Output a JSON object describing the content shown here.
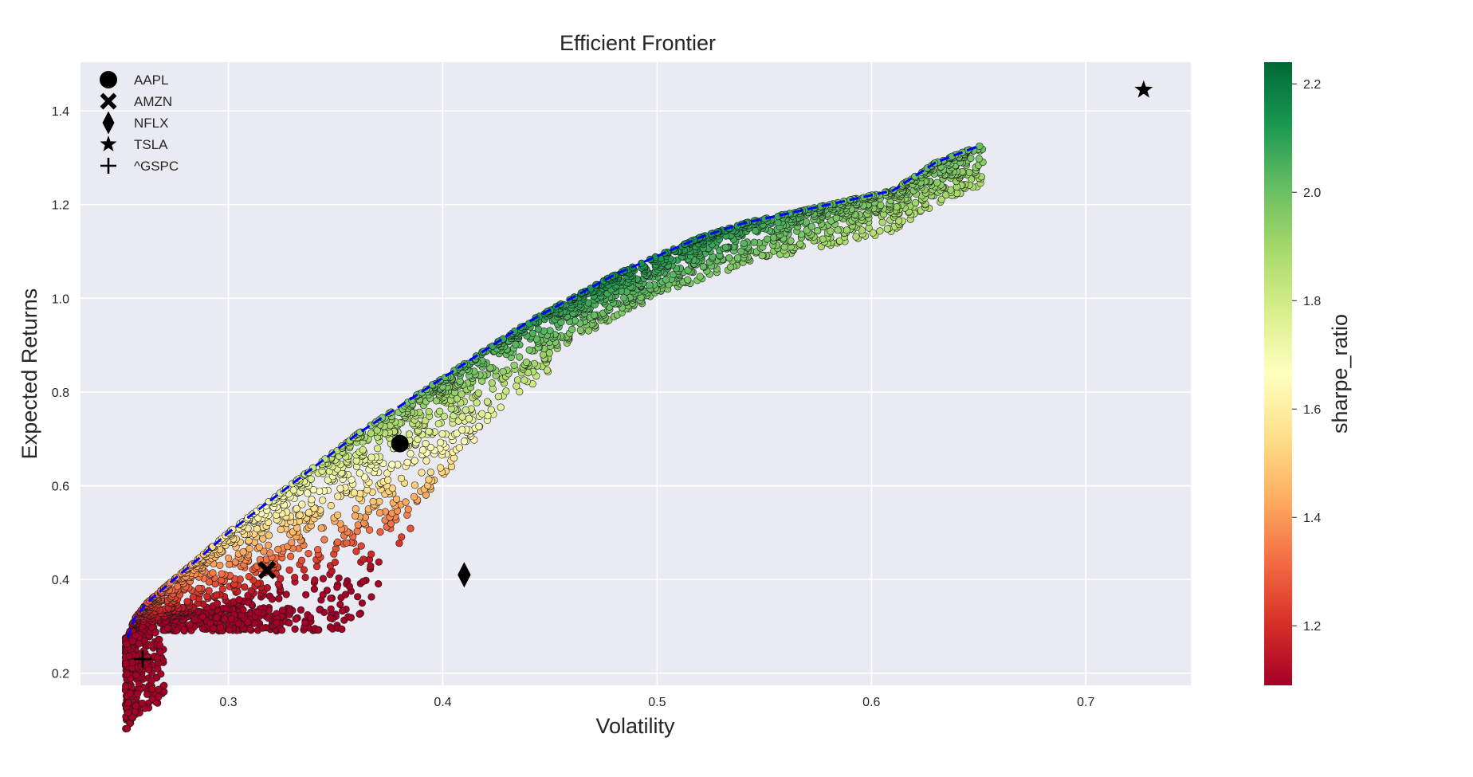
{
  "chart_data": {
    "type": "scatter",
    "title": "Efficient Frontier",
    "xlabel": "Volatility",
    "ylabel": "Expected Returns",
    "xlim": [
      0.231,
      0.749
    ],
    "ylim": [
      0.174,
      1.504
    ],
    "xticks": [
      0.3,
      0.4,
      0.5,
      0.6,
      0.7
    ],
    "yticks": [
      0.2,
      0.4,
      0.6,
      0.8,
      1.0,
      1.2,
      1.4
    ],
    "grid": true,
    "legend_placement": "top-left",
    "colorbar": {
      "label": "sharpe_ratio",
      "range": [
        1.09,
        2.24
      ],
      "ticks": [
        1.2,
        1.4,
        1.6,
        1.8,
        2.0,
        2.2
      ],
      "colormap": "RdYlGn",
      "colors": [
        "#a50026",
        "#d73027",
        "#f46d43",
        "#fdae61",
        "#fee08b",
        "#ffffbf",
        "#d9ef8b",
        "#a6d96a",
        "#66bd63",
        "#1a9850",
        "#006837"
      ]
    },
    "portfolio_cloud": {
      "description_points": "simulated random portfolios colored by sharpe ratio",
      "num_points": 9000,
      "lower_boundary_sample": [
        [
          0.255,
          0.28
        ],
        [
          0.27,
          0.33
        ],
        [
          0.3,
          0.36
        ],
        [
          0.33,
          0.38
        ],
        [
          0.36,
          0.41
        ],
        [
          0.38,
          0.44
        ],
        [
          0.4,
          0.69
        ],
        [
          0.45,
          0.8
        ],
        [
          0.5,
          0.91
        ],
        [
          0.55,
          1.0
        ],
        [
          0.6,
          1.12
        ],
        [
          0.65,
          1.32
        ]
      ]
    },
    "efficient_frontier": {
      "style": "dashed",
      "color": "#0000ff",
      "points": [
        [
          0.253,
          0.275
        ],
        [
          0.256,
          0.315
        ],
        [
          0.262,
          0.35
        ],
        [
          0.272,
          0.39
        ],
        [
          0.285,
          0.44
        ],
        [
          0.3,
          0.5
        ],
        [
          0.32,
          0.57
        ],
        [
          0.34,
          0.64
        ],
        [
          0.36,
          0.71
        ],
        [
          0.38,
          0.77
        ],
        [
          0.4,
          0.83
        ],
        [
          0.42,
          0.89
        ],
        [
          0.44,
          0.95
        ],
        [
          0.46,
          1.0
        ],
        [
          0.48,
          1.05
        ],
        [
          0.5,
          1.09
        ],
        [
          0.52,
          1.13
        ],
        [
          0.54,
          1.16
        ],
        [
          0.56,
          1.18
        ],
        [
          0.58,
          1.2
        ],
        [
          0.6,
          1.22
        ],
        [
          0.61,
          1.23
        ],
        [
          0.63,
          1.29
        ],
        [
          0.65,
          1.325
        ]
      ]
    },
    "assets": [
      {
        "name": "AAPL",
        "x": 0.38,
        "y": 0.69,
        "marker": "circle"
      },
      {
        "name": "AMZN",
        "x": 0.318,
        "y": 0.42,
        "marker": "x"
      },
      {
        "name": "NFLX",
        "x": 0.41,
        "y": 0.41,
        "marker": "diamond"
      },
      {
        "name": "TSLA",
        "x": 0.727,
        "y": 1.445,
        "marker": "star"
      },
      {
        "name": "^GSPC",
        "x": 0.26,
        "y": 0.23,
        "marker": "plus"
      }
    ]
  },
  "colors": {
    "plot_background": "#eaeaf2",
    "grid": "#ffffff",
    "marker": "#000000"
  }
}
